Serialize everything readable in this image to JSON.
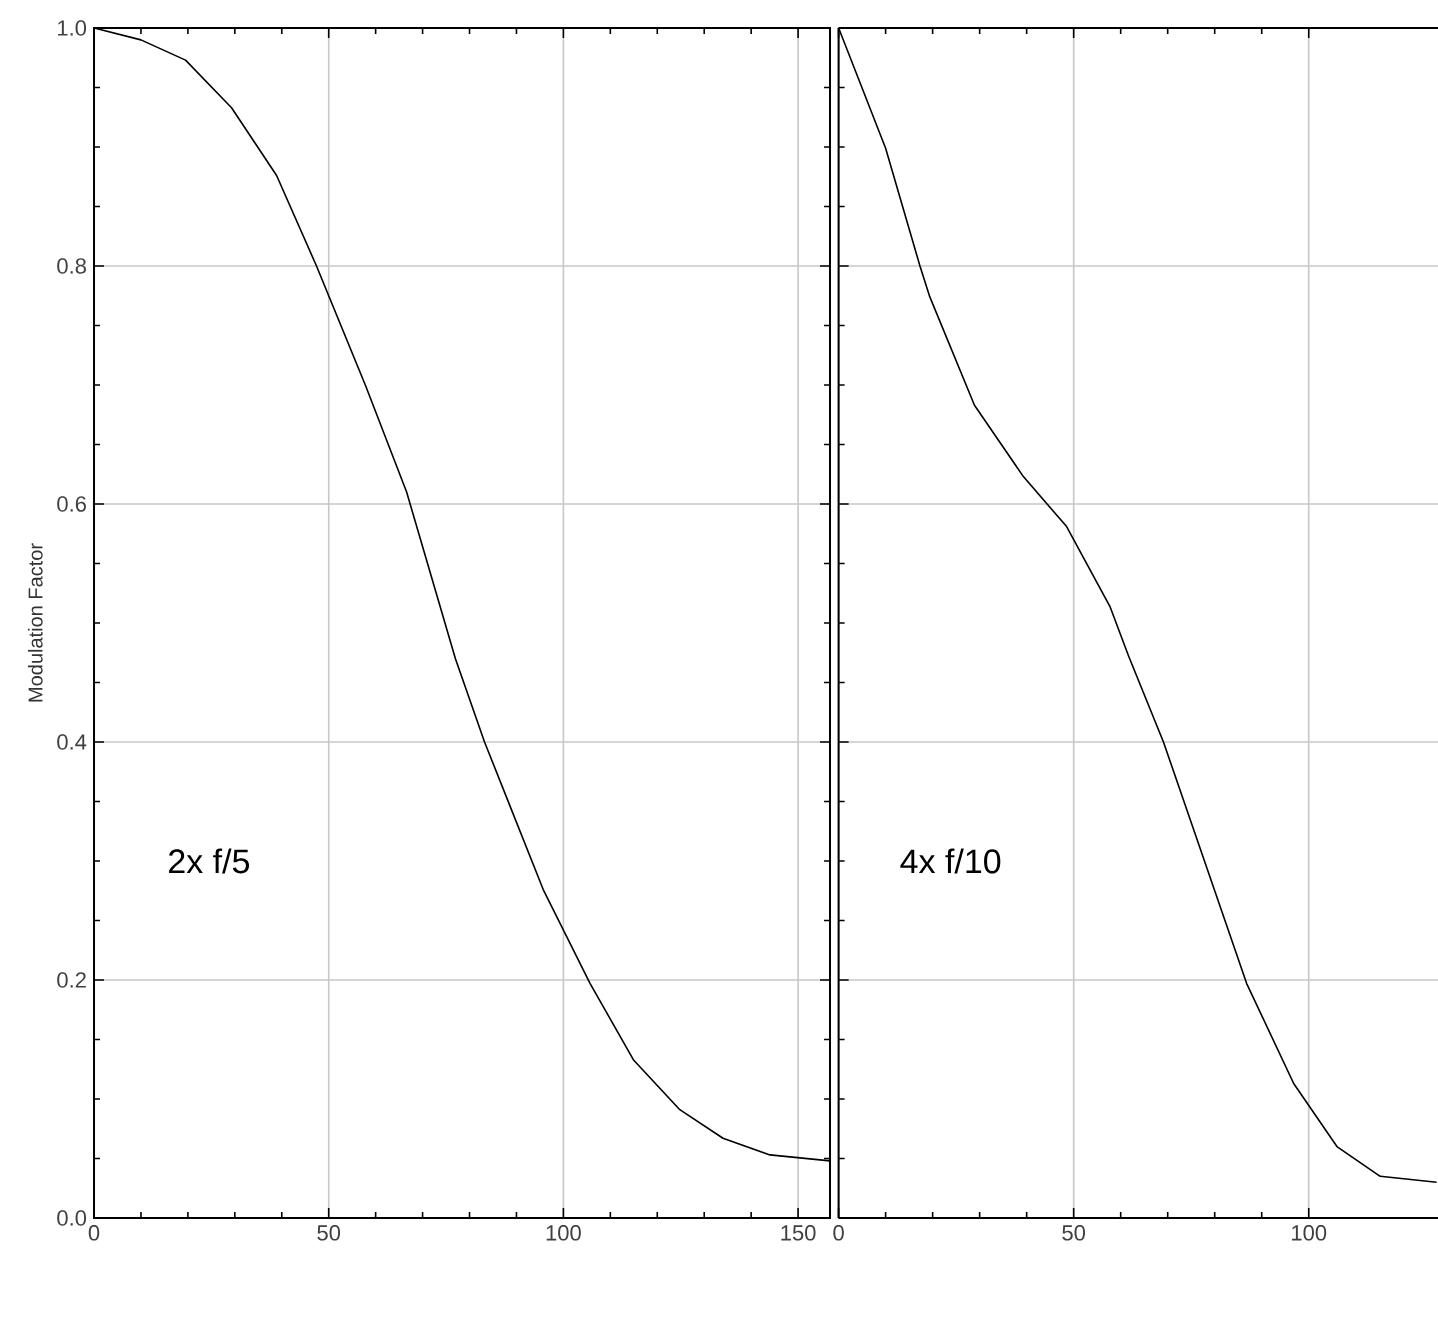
{
  "chart_data": [
    {
      "type": "line",
      "ylabel": "Modulation Factor",
      "color": "#000000",
      "grid": true,
      "x": [
        0,
        10,
        19.5,
        29.3,
        38.9,
        47.4,
        57.8,
        66.6,
        77,
        83.2,
        95.7,
        105.7,
        114.9,
        124.8,
        134,
        144,
        156.8
      ],
      "values": [
        1.0,
        0.99,
        0.973,
        0.933,
        0.876,
        0.8,
        0.7,
        0.61,
        0.47,
        0.4,
        0.276,
        0.197,
        0.133,
        0.091,
        0.067,
        0.053,
        0.048
      ],
      "xlim": [
        0,
        156.8
      ],
      "ylim": [
        0,
        1
      ],
      "xticks": [
        0,
        50,
        100,
        150
      ],
      "yticks": [
        {
          "value": 0,
          "label": "0.0"
        },
        0.2,
        0.4,
        0.6,
        0.8,
        {
          "value": 1,
          "label": "1.0"
        }
      ],
      "annotations": [
        "2x f/5"
      ]
    },
    {
      "type": "line",
      "color": "#000000",
      "grid": true,
      "tick_labels": "x",
      "x": [
        0,
        10,
        17.3,
        19.4,
        28.9,
        39.3,
        48.5,
        57.7,
        61.7,
        69.1,
        86.8,
        96.8,
        106,
        115.2,
        127.2
      ],
      "values": [
        1.0,
        0.899,
        0.8,
        0.774,
        0.683,
        0.623,
        0.581,
        0.514,
        0.472,
        0.4,
        0.197,
        0.113,
        0.06,
        0.035,
        0.03
      ],
      "xlim": [
        0,
        127.5
      ],
      "ylim": [
        0,
        1
      ],
      "xticks": [
        0,
        50,
        100
      ],
      "yticks": [
        0,
        0.2,
        0.4,
        0.6,
        0.8,
        1
      ],
      "annotations": [
        "4x f/10"
      ]
    }
  ]
}
